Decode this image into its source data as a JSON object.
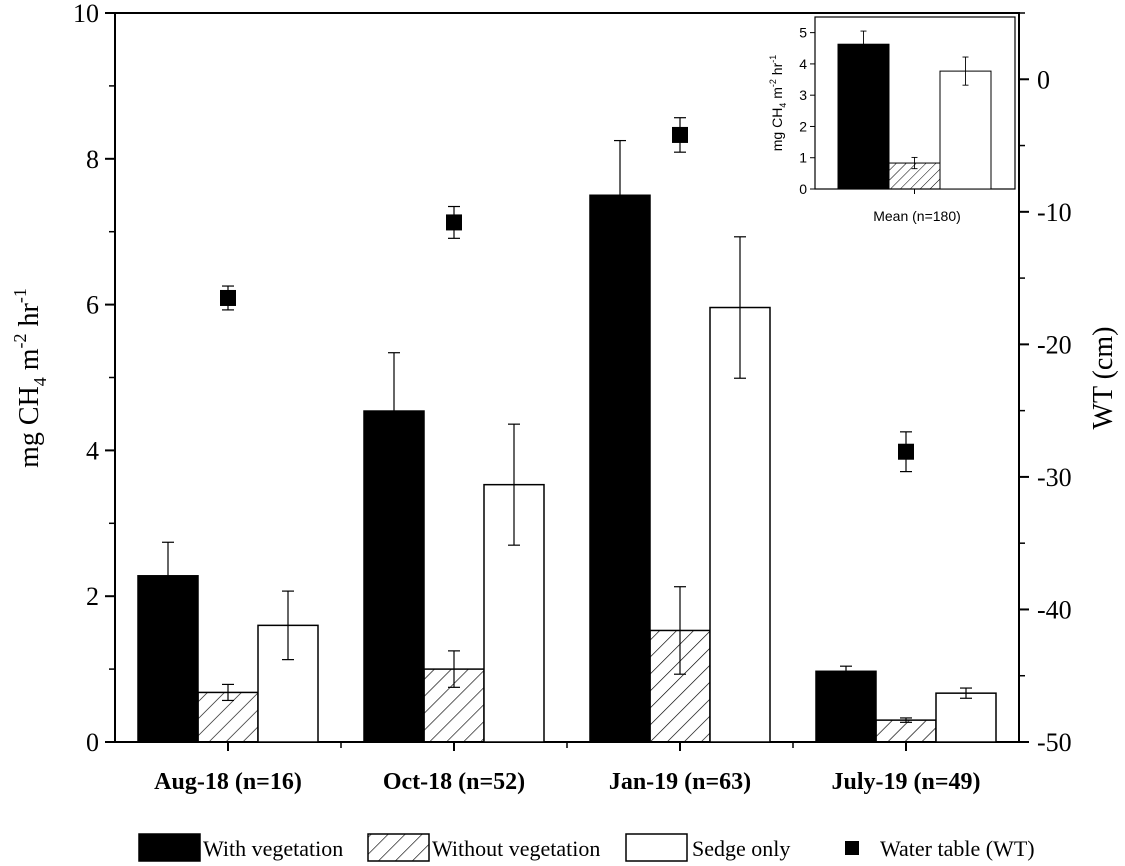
{
  "chart_data": [
    {
      "type": "bar",
      "categories": [
        "Aug-18 (n=16)",
        "Oct-18 (n=52)",
        "Jan-19 (n=63)",
        "July-19 (n=49)"
      ],
      "series": [
        {
          "name": "With vegetation",
          "fill": "solid",
          "color": "#000000",
          "values": [
            2.28,
            4.54,
            7.5,
            0.97
          ],
          "errors": [
            0.46,
            0.8,
            0.75,
            0.07
          ]
        },
        {
          "name": "Without vegetation",
          "fill": "hatched",
          "color": "#000000",
          "values": [
            0.68,
            1.0,
            1.53,
            0.3
          ],
          "errors": [
            0.11,
            0.25,
            0.6,
            0.03
          ]
        },
        {
          "name": "Sedge only",
          "fill": "open",
          "color": "#ffffff",
          "values": [
            1.6,
            3.53,
            5.96,
            0.67
          ],
          "errors": [
            0.47,
            0.83,
            0.97,
            0.07
          ]
        }
      ],
      "points": {
        "name": "Water table (WT)",
        "axis": "right",
        "values": [
          -16.5,
          -10.8,
          -4.2,
          -28.1
        ],
        "errors": [
          0.9,
          1.2,
          1.3,
          1.5
        ]
      },
      "y_left": {
        "label": "mg CH",
        "sub": "4",
        "label2": " m",
        "sup1": "-2",
        "label3": " hr",
        "sup2": "-1",
        "range": [
          0,
          10
        ],
        "ticks": [
          "0",
          "2",
          "4",
          "6",
          "8",
          "10"
        ]
      },
      "y_right": {
        "label": "WT (cm)",
        "range": [
          -50,
          5
        ],
        "ticks": [
          "0",
          "-10",
          "-20",
          "-30",
          "-40",
          "-50"
        ]
      },
      "legend": {
        "position": "bottom"
      }
    },
    {
      "type": "bar",
      "category": "Mean (n=180)",
      "values": [
        4.63,
        0.83,
        3.77
      ],
      "errors": [
        0.42,
        0.18,
        0.45
      ],
      "fills": [
        "solid",
        "hatched",
        "open"
      ],
      "ylim": [
        0,
        5.5
      ],
      "ticks": [
        "0",
        "1",
        "2",
        "3",
        "4",
        "5"
      ],
      "ylabel": {
        "label": "mg CH",
        "sub": "4",
        "label2": " m",
        "sup1": "-2",
        "label3": " hr",
        "sup2": "-1"
      },
      "position": "top-right inset"
    }
  ]
}
